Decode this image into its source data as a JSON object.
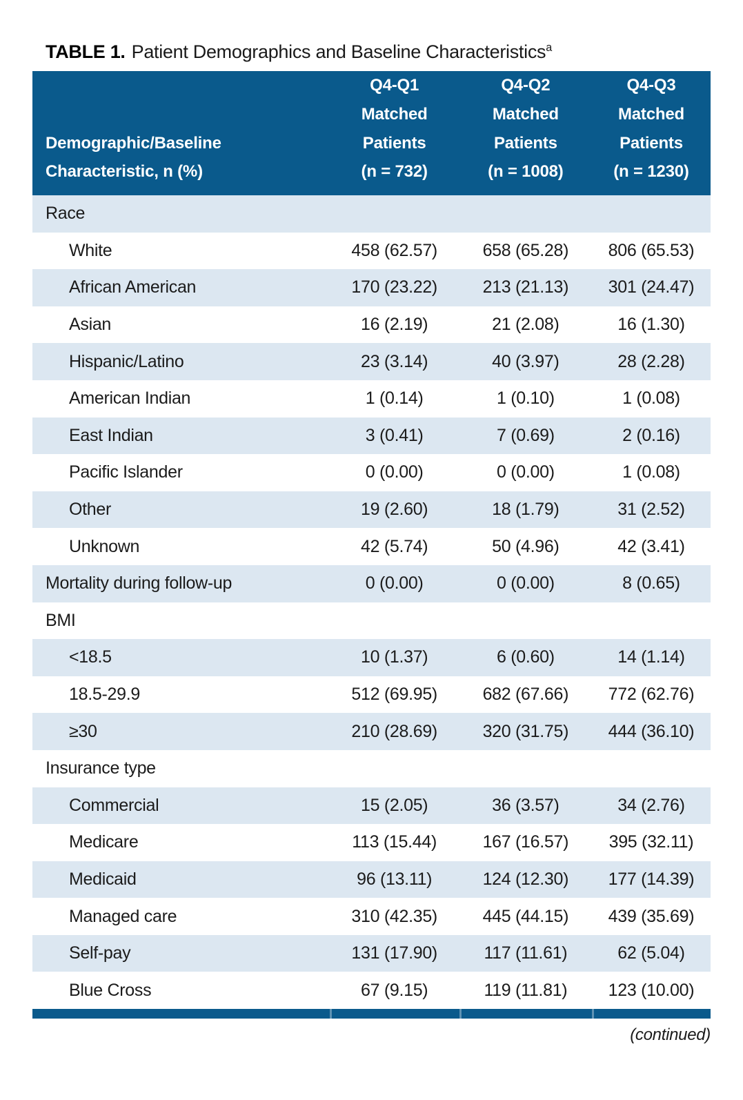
{
  "title": {
    "label": "TABLE 1.",
    "text": "Patient Demographics and Baseline Characteristics",
    "superscript": "a"
  },
  "table": {
    "header": {
      "row_label_line1": "Demographic/Baseline",
      "row_label_line2": "Characteristic, n (%)",
      "columns": [
        {
          "line1": "Q4-Q1",
          "line2": "Matched",
          "line3": "Patients",
          "line4": "(n = 732)"
        },
        {
          "line1": "Q4-Q2",
          "line2": "Matched",
          "line3": "Patients",
          "line4": "(n = 1008)"
        },
        {
          "line1": "Q4-Q3",
          "line2": "Matched",
          "line3": "Patients",
          "line4": "(n = 1230)"
        }
      ]
    },
    "rows": [
      {
        "label": "Race",
        "type": "section",
        "values": [
          "",
          "",
          ""
        ]
      },
      {
        "label": "White",
        "type": "item",
        "values": [
          "458 (62.57)",
          "658 (65.28)",
          "806 (65.53)"
        ]
      },
      {
        "label": "African American",
        "type": "item",
        "values": [
          "170 (23.22)",
          "213 (21.13)",
          "301 (24.47)"
        ]
      },
      {
        "label": "Asian",
        "type": "item",
        "values": [
          "16 (2.19)",
          "21 (2.08)",
          "16 (1.30)"
        ]
      },
      {
        "label": "Hispanic/Latino",
        "type": "item",
        "values": [
          "23 (3.14)",
          "40 (3.97)",
          "28 (2.28)"
        ]
      },
      {
        "label": "American Indian",
        "type": "item",
        "values": [
          "1 (0.14)",
          "1 (0.10)",
          "1 (0.08)"
        ]
      },
      {
        "label": "East Indian",
        "type": "item",
        "values": [
          "3 (0.41)",
          "7 (0.69)",
          "2 (0.16)"
        ]
      },
      {
        "label": "Pacific Islander",
        "type": "item",
        "values": [
          "0 (0.00)",
          "0 (0.00)",
          "1 (0.08)"
        ]
      },
      {
        "label": "Other",
        "type": "item",
        "values": [
          "19 (2.60)",
          "18 (1.79)",
          "31 (2.52)"
        ]
      },
      {
        "label": "Unknown",
        "type": "item",
        "values": [
          "42 (5.74)",
          "50 (4.96)",
          "42 (3.41)"
        ]
      },
      {
        "label": "Mortality during follow-up",
        "type": "section",
        "values": [
          "0 (0.00)",
          "0 (0.00)",
          "8 (0.65)"
        ]
      },
      {
        "label": "BMI",
        "type": "section",
        "values": [
          "",
          "",
          ""
        ]
      },
      {
        "label": "<18.5",
        "type": "item",
        "values": [
          "10 (1.37)",
          "6 (0.60)",
          "14 (1.14)"
        ]
      },
      {
        "label": "18.5-29.9",
        "type": "item",
        "values": [
          "512 (69.95)",
          "682 (67.66)",
          "772 (62.76)"
        ]
      },
      {
        "label": "≥30",
        "type": "item",
        "values": [
          "210 (28.69)",
          "320 (31.75)",
          "444 (36.10)"
        ]
      },
      {
        "label": "Insurance type",
        "type": "section",
        "values": [
          "",
          "",
          ""
        ]
      },
      {
        "label": "Commercial",
        "type": "item",
        "values": [
          "15 (2.05)",
          "36 (3.57)",
          "34 (2.76)"
        ]
      },
      {
        "label": "Medicare",
        "type": "item",
        "values": [
          "113 (15.44)",
          "167 (16.57)",
          "395 (32.11)"
        ]
      },
      {
        "label": "Medicaid",
        "type": "item",
        "values": [
          "96 (13.11)",
          "124 (12.30)",
          "177 (14.39)"
        ]
      },
      {
        "label": "Managed care",
        "type": "item",
        "values": [
          "310 (42.35)",
          "445 (44.15)",
          "439 (35.69)"
        ]
      },
      {
        "label": "Self-pay",
        "type": "item",
        "values": [
          "131 (17.90)",
          "117 (11.61)",
          "62 (5.04)"
        ]
      },
      {
        "label": "Blue Cross",
        "type": "item",
        "values": [
          "67 (9.15)",
          "119 (11.81)",
          "123 (10.00)"
        ]
      }
    ],
    "continued_note": "(continued)"
  },
  "colors": {
    "header_bg": "#0a5a8c",
    "stripe_bg": "#dce7f1",
    "bottom_rule": "#0a5a8c",
    "header_text": "#ffffff",
    "body_text": "#1b1b1b"
  }
}
